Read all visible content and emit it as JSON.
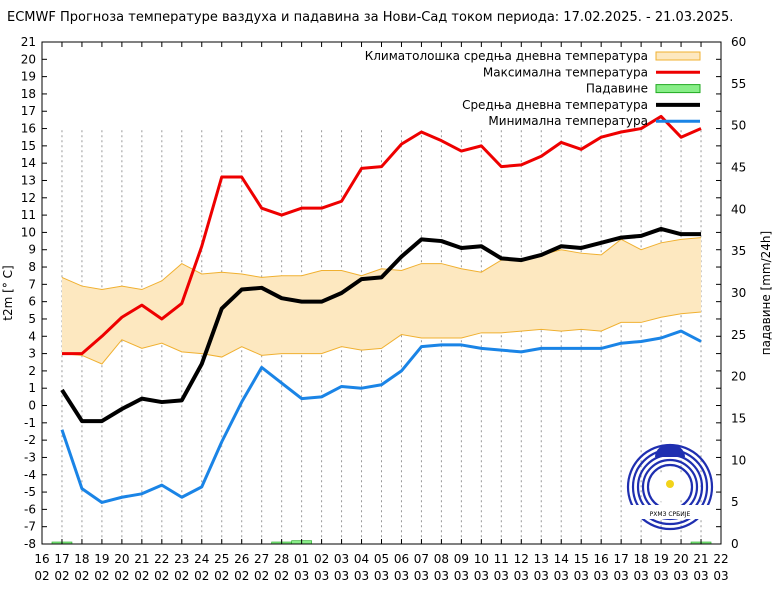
{
  "chart_data": {
    "type": "line",
    "title": "ECMWF Прогноза температуре ваздуха и падавина за Нови-Сад током периода: 17.02.2025. - 21.03.2025.",
    "ylabel": "t2m [° C]",
    "y2label": "падавине [mm/24h]",
    "ylim": [
      -8,
      21
    ],
    "y2lim": [
      0,
      60
    ],
    "grid": true,
    "legend_position": "top-right",
    "x_ticks": [
      {
        "day": "16",
        "month": "02"
      },
      {
        "day": "17",
        "month": "02"
      },
      {
        "day": "18",
        "month": "02"
      },
      {
        "day": "19",
        "month": "02"
      },
      {
        "day": "20",
        "month": "02"
      },
      {
        "day": "21",
        "month": "02"
      },
      {
        "day": "22",
        "month": "02"
      },
      {
        "day": "23",
        "month": "02"
      },
      {
        "day": "24",
        "month": "02"
      },
      {
        "day": "25",
        "month": "02"
      },
      {
        "day": "26",
        "month": "02"
      },
      {
        "day": "27",
        "month": "02"
      },
      {
        "day": "28",
        "month": "02"
      },
      {
        "day": "01",
        "month": "03"
      },
      {
        "day": "02",
        "month": "03"
      },
      {
        "day": "03",
        "month": "03"
      },
      {
        "day": "04",
        "month": "03"
      },
      {
        "day": "05",
        "month": "03"
      },
      {
        "day": "06",
        "month": "03"
      },
      {
        "day": "07",
        "month": "03"
      },
      {
        "day": "08",
        "month": "03"
      },
      {
        "day": "09",
        "month": "03"
      },
      {
        "day": "10",
        "month": "03"
      },
      {
        "day": "11",
        "month": "03"
      },
      {
        "day": "12",
        "month": "03"
      },
      {
        "day": "13",
        "month": "03"
      },
      {
        "day": "14",
        "month": "03"
      },
      {
        "day": "15",
        "month": "03"
      },
      {
        "day": "16",
        "month": "03"
      },
      {
        "day": "17",
        "month": "03"
      },
      {
        "day": "18",
        "month": "03"
      },
      {
        "day": "19",
        "month": "03"
      },
      {
        "day": "20",
        "month": "03"
      },
      {
        "day": "21",
        "month": "03"
      },
      {
        "day": "22",
        "month": "03"
      }
    ],
    "y_ticks": [
      "-8",
      "-7",
      "-6",
      "-5",
      "-4",
      "-3",
      "-2",
      "-1",
      "0",
      "1",
      "2",
      "3",
      "4",
      "5",
      "6",
      "7",
      "8",
      "9",
      "10",
      "11",
      "12",
      "13",
      "14",
      "15",
      "16",
      "17",
      "18",
      "19",
      "20",
      "21"
    ],
    "y2_ticks": [
      "0",
      "5",
      "10",
      "15",
      "20",
      "25",
      "30",
      "35",
      "40",
      "45",
      "50",
      "55",
      "60"
    ],
    "legend": [
      "Климатолошка средња дневна температура",
      "Максимална температура",
      "Падавине",
      "Средња дневна температура",
      "Минимална температура"
    ],
    "climate_band": {
      "color_fill": "#fde8c0",
      "color_edge": "#f0b030",
      "upper": [
        7.4,
        6.9,
        6.7,
        6.9,
        6.7,
        7.2,
        8.2,
        7.6,
        7.7,
        7.6,
        7.4,
        7.5,
        7.5,
        7.8,
        7.8,
        7.5,
        7.9,
        7.8,
        8.2,
        8.2,
        7.9,
        7.7,
        8.4,
        8.4,
        8.7,
        9.0,
        8.8,
        8.7,
        9.6,
        9.0,
        9.4,
        9.6,
        9.7
      ],
      "lower": [
        3.0,
        2.9,
        2.4,
        3.8,
        3.3,
        3.6,
        3.1,
        3.0,
        2.8,
        3.4,
        2.9,
        3.0,
        3.0,
        3.0,
        3.4,
        3.2,
        3.3,
        4.1,
        3.9,
        3.9,
        3.9,
        4.2,
        4.2,
        4.3,
        4.4,
        4.3,
        4.4,
        4.3,
        4.8,
        4.8,
        5.1,
        5.3,
        5.4
      ]
    },
    "series": [
      {
        "name": "Максимална температура",
        "color": "#ee0000",
        "values": [
          3.0,
          3.0,
          4.0,
          5.1,
          5.8,
          5.0,
          5.9,
          9.2,
          13.2,
          13.2,
          11.4,
          11.0,
          11.4,
          11.4,
          11.8,
          13.7,
          13.8,
          15.1,
          15.8,
          15.3,
          14.7,
          15.0,
          13.8,
          13.9,
          14.4,
          15.2,
          14.8,
          15.5,
          15.8,
          16.0,
          16.7,
          15.5,
          16.0
        ]
      },
      {
        "name": "Средња дневна температура",
        "color": "#000000",
        "values": [
          0.9,
          -0.9,
          -0.9,
          -0.2,
          0.4,
          0.2,
          0.3,
          2.4,
          5.6,
          6.7,
          6.8,
          6.2,
          6.0,
          6.0,
          6.5,
          7.3,
          7.4,
          8.6,
          9.6,
          9.5,
          9.1,
          9.2,
          8.5,
          8.4,
          8.7,
          9.2,
          9.1,
          9.4,
          9.7,
          9.8,
          10.2,
          9.9,
          9.9
        ]
      },
      {
        "name": "Минимална температура",
        "color": "#1a84e6",
        "values": [
          -1.4,
          -4.8,
          -5.6,
          -5.3,
          -5.1,
          -4.6,
          -5.3,
          -4.7,
          -2.1,
          0.2,
          2.2,
          1.3,
          0.4,
          0.5,
          1.1,
          1.0,
          1.2,
          2.0,
          3.4,
          3.5,
          3.5,
          3.3,
          3.2,
          3.1,
          3.3,
          3.3,
          3.3,
          3.3,
          3.6,
          3.7,
          3.9,
          4.3,
          3.7
        ]
      }
    ],
    "precipitation": {
      "name": "Падавине",
      "color": "#88ee88",
      "values_mm": [
        0.2,
        0,
        0,
        0,
        0,
        0,
        0,
        0,
        0,
        0,
        0,
        0.2,
        0.4,
        0,
        0,
        0,
        0,
        0,
        0,
        0,
        0,
        0,
        0,
        0,
        0,
        0,
        0,
        0,
        0,
        0,
        0,
        0,
        0.2
      ]
    },
    "logo_text": "РХМЗ СРБИЈЕ"
  }
}
